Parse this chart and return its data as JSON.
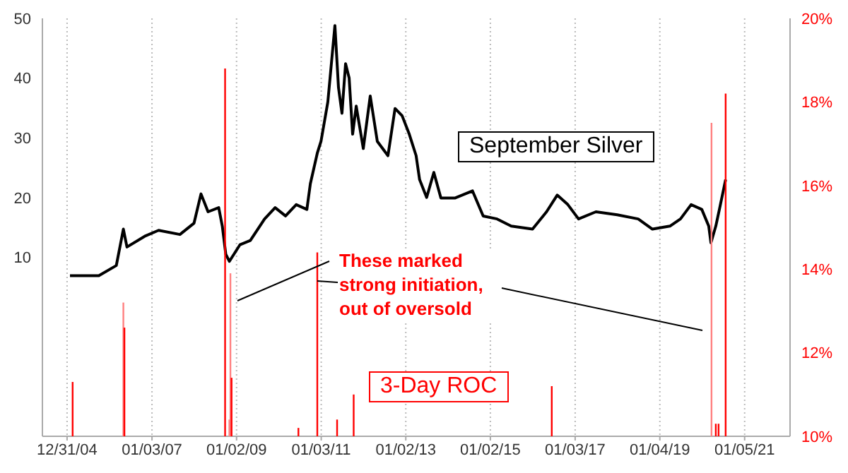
{
  "chart_data": {
    "type": "line",
    "annotations": [
      {
        "text": "These marked strong initiation, out of oversold",
        "x": "2010-11-30",
        "y": 6
      }
    ],
    "series": [
      {
        "name": "September Silver",
        "color": "#000000",
        "x": [
          "2005-01-25",
          "2005-10-01",
          "2006-03-01",
          "2006-05-01",
          "2006-06-01",
          "2006-11-01",
          "2007-03-01",
          "2007-09-01",
          "2008-01-01",
          "2008-03-01",
          "2008-05-01",
          "2008-08-01",
          "2008-09-01",
          "2008-10-01",
          "2008-11-01",
          "2009-02-01",
          "2009-05-01",
          "2009-09-01",
          "2009-12-01",
          "2010-03-01",
          "2010-06-01",
          "2010-09-01",
          "2010-10-01",
          "2010-12-01",
          "2011-01-01",
          "2011-03-01",
          "2011-05-01",
          "2011-06-01",
          "2011-07-01",
          "2011-08-01",
          "2011-09-01",
          "2011-10-01",
          "2011-11-01",
          "2012-01-01",
          "2012-03-01",
          "2012-05-01",
          "2012-08-01",
          "2012-10-01",
          "2012-12-01",
          "2013-02-01",
          "2013-04-01",
          "2013-05-01",
          "2013-07-01",
          "2013-09-01",
          "2013-11-01",
          "2014-03-01",
          "2014-08-01",
          "2014-11-01",
          "2015-03-01",
          "2015-07-01",
          "2016-01-01",
          "2016-05-01",
          "2016-08-01",
          "2016-11-01",
          "2017-02-01",
          "2017-07-01",
          "2018-01-01",
          "2018-07-01",
          "2018-11-01",
          "2019-04-01",
          "2019-07-01",
          "2019-10-01",
          "2020-01-01",
          "2020-03-01",
          "2020-03-20",
          "2020-05-01",
          "2020-06-01",
          "2020-07-25"
        ],
        "values": [
          6.9,
          6.9,
          8.6,
          14.7,
          11.7,
          13.5,
          14.5,
          13.8,
          15.7,
          20.6,
          17.6,
          18.3,
          15.2,
          10.5,
          9.3,
          12.1,
          12.8,
          16.4,
          18.3,
          16.9,
          18.8,
          18,
          22.3,
          27.5,
          29.4,
          36,
          48.8,
          38.4,
          34.1,
          42.4,
          40,
          30.6,
          35.3,
          28.2,
          37,
          29.4,
          27,
          34.9,
          33.7,
          30.6,
          27,
          23,
          20,
          24.2,
          19.9,
          19.9,
          21.1,
          16.9,
          16.4,
          15.2,
          14.7,
          17.6,
          20.4,
          18.8,
          16.4,
          17.6,
          17.1,
          16.4,
          14.7,
          15.2,
          16.4,
          18.8,
          18,
          15.2,
          12.4,
          15.2,
          18,
          23
        ]
      },
      {
        "name": "3-Day ROC",
        "type": "bar",
        "axis": "y2",
        "color": "#ff0000",
        "x": [
          "2005-02-17",
          "2006-05-01",
          "2006-05-10",
          "2008-09-25",
          "2008-11-01",
          "2008-11-10",
          "2008-11-20",
          "2010-06-20",
          "2010-11-30",
          "2011-05-20",
          "2011-10-10",
          "2016-06-15",
          "2020-03-25",
          "2020-05-01",
          "2020-05-25",
          "2020-07-25"
        ],
        "values": [
          11.3,
          13.2,
          12.6,
          18.8,
          10.4,
          13.9,
          11.4,
          10.2,
          14.4,
          10.4,
          11,
          11.2,
          17.5,
          10.3,
          10.3,
          18.2
        ],
        "colors": [
          "#ff0000",
          "#ff8080",
          "#ff0000",
          "#ff0000",
          "#ff8080",
          "#ff8080",
          "#ff0000",
          "#ff0000",
          "#ff0000",
          "#ff0000",
          "#ff0000",
          "#ff0000",
          "#ff8080",
          "#ff0000",
          "#ff0000",
          "#ff0000"
        ]
      }
    ],
    "xlim": [
      "2004-06-01",
      "2022-02-01"
    ],
    "xticks": [
      {
        "value": "2004-12-31",
        "label": "12/31/04"
      },
      {
        "value": "2007-01-03",
        "label": "01/03/07"
      },
      {
        "value": "2009-01-02",
        "label": "01/02/09"
      },
      {
        "value": "2011-01-03",
        "label": "01/03/11"
      },
      {
        "value": "2013-01-02",
        "label": "01/02/13"
      },
      {
        "value": "2015-01-02",
        "label": "01/02/15"
      },
      {
        "value": "2017-01-03",
        "label": "01/03/17"
      },
      {
        "value": "2019-01-04",
        "label": "01/04/19"
      },
      {
        "value": "2021-01-05",
        "label": "01/05/21"
      }
    ],
    "ylim": [
      -20,
      50
    ],
    "yticks": [
      10,
      20,
      30,
      40,
      50
    ],
    "y2lim": [
      10,
      20
    ],
    "y2ticks": [
      {
        "value": 10,
        "label": "10%"
      },
      {
        "value": 12,
        "label": "12%"
      },
      {
        "value": 14,
        "label": "14%"
      },
      {
        "value": 16,
        "label": "16%"
      },
      {
        "value": 18,
        "label": "18%"
      },
      {
        "value": 20,
        "label": "20%"
      }
    ],
    "grid": "x",
    "legend": false,
    "marker": "none",
    "line_style": "solid"
  }
}
